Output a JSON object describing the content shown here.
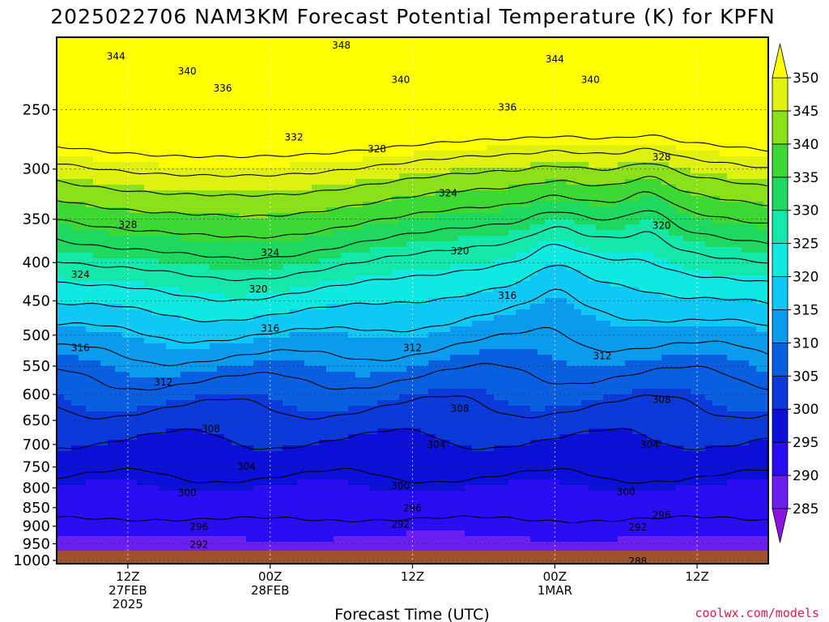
{
  "title": "2025022706 NAM3KM Forecast Potential Temperature (K) for KPFN",
  "credit": "coolwx.com/models",
  "colors": {
    "ground": "#a0522d",
    "contour": "#000000",
    "credit": "#e0194b"
  },
  "chart_data": {
    "type": "contour",
    "title": "2025022706 NAM3KM Forecast Potential Temperature (K) for KPFN",
    "xlabel": "Forecast Time (UTC)",
    "ylabel": "",
    "y_scale": "log",
    "y_inverted": true,
    "y_range": [
      1010,
      200
    ],
    "y_ticks": [
      250,
      300,
      350,
      400,
      450,
      500,
      550,
      600,
      650,
      700,
      750,
      800,
      850,
      900,
      950,
      1000
    ],
    "y_tick_labels": [
      "250",
      "300",
      "350",
      "400",
      "450",
      "500",
      "550",
      "600",
      "650",
      "700",
      "750",
      "800",
      "850",
      "900",
      "950",
      "1000"
    ],
    "x_range_hours": [
      0,
      60
    ],
    "x_ticks": [
      {
        "hour": 6,
        "label": [
          "12Z",
          "27FEB",
          "2025"
        ]
      },
      {
        "hour": 18,
        "label": [
          "00Z",
          "28FEB"
        ]
      },
      {
        "hour": 30,
        "label": [
          "12Z"
        ]
      },
      {
        "hour": 42,
        "label": [
          "00Z",
          "1MAR"
        ]
      },
      {
        "hour": 54,
        "label": [
          "12Z"
        ]
      }
    ],
    "grid": true,
    "colorbar": {
      "levels": [
        285,
        290,
        295,
        300,
        305,
        310,
        315,
        320,
        325,
        330,
        335,
        340,
        345,
        350
      ],
      "labels": [
        "285",
        "290",
        "295",
        "300",
        "305",
        "310",
        "315",
        "320",
        "325",
        "330",
        "335",
        "340",
        "345",
        "350"
      ],
      "colors": [
        "#8a16e0",
        "#6a1ef0",
        "#2a0cf5",
        "#0a10d8",
        "#0b3ad8",
        "#0a5fe0",
        "#0a9aee",
        "#10c8f5",
        "#10e8e2",
        "#14e8a8",
        "#1ed860",
        "#3ed834",
        "#8ce01a",
        "#e0f010",
        "#ffff00"
      ],
      "extend": "both"
    },
    "contour_interval": 4,
    "contour_labels": [
      {
        "value": 348,
        "t": 24,
        "p": 205
      },
      {
        "value": 344,
        "t": 5,
        "p": 212
      },
      {
        "value": 344,
        "t": 42,
        "p": 214
      },
      {
        "value": 340,
        "t": 11,
        "p": 222
      },
      {
        "value": 340,
        "t": 29,
        "p": 228
      },
      {
        "value": 340,
        "t": 45,
        "p": 228
      },
      {
        "value": 336,
        "t": 14,
        "p": 234
      },
      {
        "value": 336,
        "t": 38,
        "p": 248
      },
      {
        "value": 332,
        "t": 20,
        "p": 272
      },
      {
        "value": 328,
        "t": 27,
        "p": 282
      },
      {
        "value": 328,
        "t": 51,
        "p": 289
      },
      {
        "value": 324,
        "t": 33,
        "p": 323
      },
      {
        "value": 328,
        "t": 6,
        "p": 356
      },
      {
        "value": 320,
        "t": 51,
        "p": 357
      },
      {
        "value": 320,
        "t": 34,
        "p": 386
      },
      {
        "value": 324,
        "t": 18,
        "p": 388
      },
      {
        "value": 324,
        "t": 2,
        "p": 415
      },
      {
        "value": 320,
        "t": 17,
        "p": 434
      },
      {
        "value": 316,
        "t": 38,
        "p": 443
      },
      {
        "value": 316,
        "t": 18,
        "p": 490
      },
      {
        "value": 316,
        "t": 2,
        "p": 520
      },
      {
        "value": 312,
        "t": 30,
        "p": 520
      },
      {
        "value": 312,
        "t": 46,
        "p": 533
      },
      {
        "value": 312,
        "t": 9,
        "p": 578
      },
      {
        "value": 308,
        "t": 51,
        "p": 610
      },
      {
        "value": 308,
        "t": 34,
        "p": 627
      },
      {
        "value": 308,
        "t": 13,
        "p": 667
      },
      {
        "value": 304,
        "t": 32,
        "p": 700
      },
      {
        "value": 304,
        "t": 50,
        "p": 700
      },
      {
        "value": 304,
        "t": 16,
        "p": 749
      },
      {
        "value": 300,
        "t": 29,
        "p": 795
      },
      {
        "value": 300,
        "t": 48,
        "p": 810
      },
      {
        "value": 300,
        "t": 11,
        "p": 812
      },
      {
        "value": 296,
        "t": 30,
        "p": 852
      },
      {
        "value": 296,
        "t": 51,
        "p": 870
      },
      {
        "value": 292,
        "t": 29,
        "p": 895
      },
      {
        "value": 296,
        "t": 12,
        "p": 902
      },
      {
        "value": 292,
        "t": 49,
        "p": 903
      },
      {
        "value": 292,
        "t": 12,
        "p": 952
      },
      {
        "value": 288,
        "t": 49,
        "p": 1002
      }
    ]
  }
}
